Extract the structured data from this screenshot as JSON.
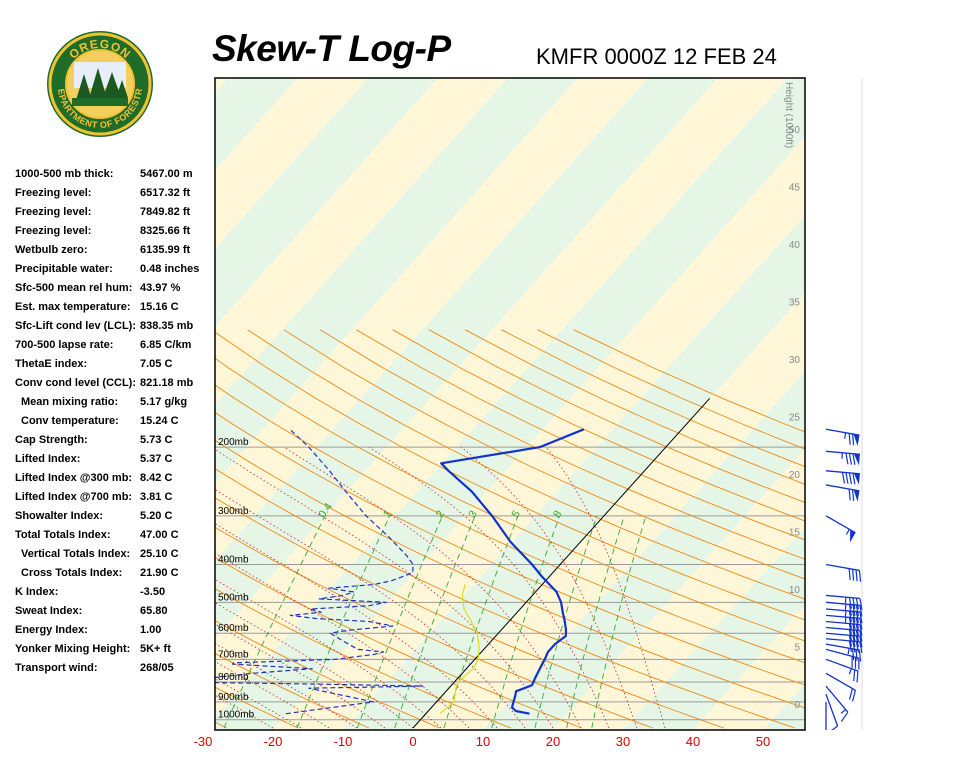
{
  "header": {
    "title": "Skew-T Log-P",
    "station": "KMFR 0000Z 12 FEB 24",
    "logo_top": "OREGON",
    "logo_bottom": "DEPARTMENT OF FORESTRY"
  },
  "indices": [
    {
      "label": "1000-500 mb thick:",
      "value": "5467.00 m",
      "indent": false
    },
    {
      "label": "Freezing level:",
      "value": "6517.32 ft",
      "indent": false
    },
    {
      "label": "Freezing level:",
      "value": "7849.82 ft",
      "indent": false
    },
    {
      "label": "Freezing level:",
      "value": "8325.66 ft",
      "indent": false
    },
    {
      "label": "Wetbulb zero:",
      "value": "6135.99 ft",
      "indent": false
    },
    {
      "label": "Precipitable water:",
      "value": "0.48 inches",
      "indent": false
    },
    {
      "label": "Sfc-500 mean rel hum:",
      "value": "43.97 %",
      "indent": false
    },
    {
      "label": "Est. max temperature:",
      "value": "15.16 C",
      "indent": false
    },
    {
      "label": "Sfc-Lift cond lev (LCL):",
      "value": "838.35 mb",
      "indent": false
    },
    {
      "label": "700-500 lapse rate:",
      "value": "6.85 C/km",
      "indent": false
    },
    {
      "label": "ThetaE index:",
      "value": "7.05 C",
      "indent": false
    },
    {
      "label": "Conv cond level (CCL):",
      "value": "821.18 mb",
      "indent": false
    },
    {
      "label": "Mean mixing ratio:",
      "value": "5.17 g/kg",
      "indent": true
    },
    {
      "label": "Conv temperature:",
      "value": "15.24 C",
      "indent": true
    },
    {
      "label": "Cap Strength:",
      "value": "5.73 C",
      "indent": false
    },
    {
      "label": "Lifted Index:",
      "value": "5.37 C",
      "indent": false
    },
    {
      "label": "Lifted Index @300 mb:",
      "value": "8.42 C",
      "indent": false
    },
    {
      "label": "Lifted Index @700 mb:",
      "value": "3.81 C",
      "indent": false
    },
    {
      "label": "Showalter Index:",
      "value": "5.20 C",
      "indent": false
    },
    {
      "label": "Total Totals Index:",
      "value": "47.00 C",
      "indent": false
    },
    {
      "label": "Vertical Totals Index:",
      "value": "25.10 C",
      "indent": true
    },
    {
      "label": "Cross Totals Index:",
      "value": "21.90 C",
      "indent": true
    },
    {
      "label": "K Index:",
      "value": "-3.50",
      "indent": false
    },
    {
      "label": "Sweat Index:",
      "value": "65.80",
      "indent": false
    },
    {
      "label": "Energy Index:",
      "value": "1.00",
      "indent": false
    },
    {
      "label": "Yonker Mixing Height:",
      "value": "5K+ ft",
      "indent": false
    },
    {
      "label": "Transport wind:",
      "value": "268/05",
      "indent": false
    }
  ],
  "chart_data": {
    "type": "line",
    "title": "Skew-T Log-P",
    "subtitle": "KMFR 0000Z 12 FEB 24",
    "x_tick_labels": [
      "-30",
      "-20",
      "-10",
      "0",
      "10",
      "20",
      "30",
      "40",
      "50"
    ],
    "x_ticks": [
      -30,
      -20,
      -10,
      0,
      10,
      20,
      30,
      40,
      50
    ],
    "pressure_levels": [
      {
        "p": 200,
        "label": "200mb"
      },
      {
        "p": 300,
        "label": "300mb"
      },
      {
        "p": 400,
        "label": "400mb"
      },
      {
        "p": 500,
        "label": "500mb"
      },
      {
        "p": 600,
        "label": "600mb"
      },
      {
        "p": 700,
        "label": "700mb"
      },
      {
        "p": 800,
        "label": "800mb"
      },
      {
        "p": 900,
        "label": "900mb"
      },
      {
        "p": 1000,
        "label": "1000mb"
      }
    ],
    "height_axis_label": "Height (1000ft)",
    "height_ticks": [
      "0",
      "5",
      "10",
      "15",
      "20",
      "25",
      "30",
      "35",
      "40",
      "45",
      "50"
    ],
    "mixing_ratio_labels": [
      "0.4",
      "1",
      "2",
      "3",
      "5",
      "8"
    ],
    "colors": {
      "temperature": "#1133cc",
      "dewpoint": "#2233bb",
      "wetbulb": "#dddd22",
      "isotherm_band": "#fff7d8",
      "isotherm_band_alt": "#e6f6e6",
      "dry_adiabat": "#ee8811",
      "moist_adiabat": "#cc2222",
      "mixing_ratio": "#33aa33",
      "axis_labels": "#dd0000"
    },
    "series": [
      {
        "kind": "temperature",
        "points": [
          [
            965,
            14.8
          ],
          [
            950,
            12.5
          ],
          [
            930,
            11.5
          ],
          [
            900,
            11.0
          ],
          [
            870,
            10.5
          ],
          [
            845,
            10.0
          ],
          [
            830,
            10.8
          ],
          [
            815,
            11.5
          ],
          [
            780,
            11.0
          ],
          [
            740,
            10.5
          ],
          [
            700,
            10.0
          ],
          [
            670,
            9.5
          ],
          [
            640,
            9.5
          ],
          [
            610,
            10.0
          ],
          [
            590,
            9.3
          ],
          [
            560,
            8.0
          ],
          [
            530,
            6.5
          ],
          [
            500,
            5.0
          ],
          [
            470,
            3.0
          ],
          [
            430,
            -1.0
          ],
          [
            400,
            -4.0
          ],
          [
            350,
            -10.0
          ],
          [
            300,
            -16.0
          ],
          [
            260,
            -22.0
          ],
          [
            230,
            -28.0
          ],
          [
            220,
            -30.0
          ],
          [
            200,
            -18.0
          ],
          [
            180,
            -14.0
          ]
        ]
      },
      {
        "kind": "dewpoint",
        "points": [
          [
            965,
            -20
          ],
          [
            900,
            -9
          ],
          [
            830,
            -20
          ],
          [
            820,
            -4
          ],
          [
            810,
            -20
          ],
          [
            800,
            -42
          ],
          [
            780,
            -35
          ],
          [
            760,
            -30
          ],
          [
            740,
            -22
          ],
          [
            720,
            -34
          ],
          [
            715,
            -34
          ],
          [
            700,
            -20
          ],
          [
            680,
            -15
          ],
          [
            670,
            -14
          ],
          [
            660,
            -18
          ],
          [
            620,
            -22
          ],
          [
            600,
            -24
          ],
          [
            590,
            -22
          ],
          [
            575,
            -16
          ],
          [
            560,
            -20
          ],
          [
            550,
            -28
          ],
          [
            540,
            -32
          ],
          [
            530,
            -28
          ],
          [
            520,
            -30
          ],
          [
            510,
            -22
          ],
          [
            500,
            -20
          ],
          [
            490,
            -30
          ],
          [
            480,
            -27
          ],
          [
            470,
            -26
          ],
          [
            460,
            -30
          ],
          [
            450,
            -24
          ],
          [
            440,
            -22
          ],
          [
            420,
            -20
          ],
          [
            400,
            -21
          ],
          [
            380,
            -23
          ],
          [
            340,
            -28
          ],
          [
            300,
            -34
          ],
          [
            260,
            -40
          ],
          [
            230,
            -45
          ],
          [
            200,
            -51
          ],
          [
            180,
            -56
          ]
        ]
      },
      {
        "kind": "wetbulb",
        "points": [
          [
            965,
            2
          ],
          [
            900,
            2.5
          ],
          [
            830,
            1
          ],
          [
            800,
            0.5
          ],
          [
            740,
            1
          ],
          [
            700,
            0.5
          ],
          [
            650,
            -1
          ],
          [
            600,
            -3
          ],
          [
            550,
            -6
          ],
          [
            520,
            -8
          ],
          [
            500,
            -9
          ],
          [
            480,
            -10
          ],
          [
            450,
            -11
          ]
        ]
      }
    ],
    "wind_barbs": [
      {
        "p": 180,
        "dir": 260,
        "speed_kt": 75
      },
      {
        "p": 205,
        "dir": 265,
        "speed_kt": 85
      },
      {
        "p": 230,
        "dir": 265,
        "speed_kt": 90
      },
      {
        "p": 250,
        "dir": 260,
        "speed_kt": 70
      },
      {
        "p": 300,
        "dir": 240,
        "speed_kt": 55
      },
      {
        "p": 400,
        "dir": 260,
        "speed_kt": 40
      },
      {
        "p": 480,
        "dir": 265,
        "speed_kt": 45
      },
      {
        "p": 500,
        "dir": 265,
        "speed_kt": 45
      },
      {
        "p": 520,
        "dir": 265,
        "speed_kt": 45
      },
      {
        "p": 540,
        "dir": 265,
        "speed_kt": 45
      },
      {
        "p": 560,
        "dir": 265,
        "speed_kt": 40
      },
      {
        "p": 580,
        "dir": 265,
        "speed_kt": 40
      },
      {
        "p": 600,
        "dir": 265,
        "speed_kt": 40
      },
      {
        "p": 620,
        "dir": 265,
        "speed_kt": 40
      },
      {
        "p": 640,
        "dir": 260,
        "speed_kt": 35
      },
      {
        "p": 660,
        "dir": 255,
        "speed_kt": 30
      },
      {
        "p": 700,
        "dir": 250,
        "speed_kt": 25
      },
      {
        "p": 760,
        "dir": 240,
        "speed_kt": 20
      },
      {
        "p": 820,
        "dir": 220,
        "speed_kt": 15
      },
      {
        "p": 860,
        "dir": 200,
        "speed_kt": 10
      },
      {
        "p": 900,
        "dir": 180,
        "speed_kt": 5
      }
    ]
  }
}
